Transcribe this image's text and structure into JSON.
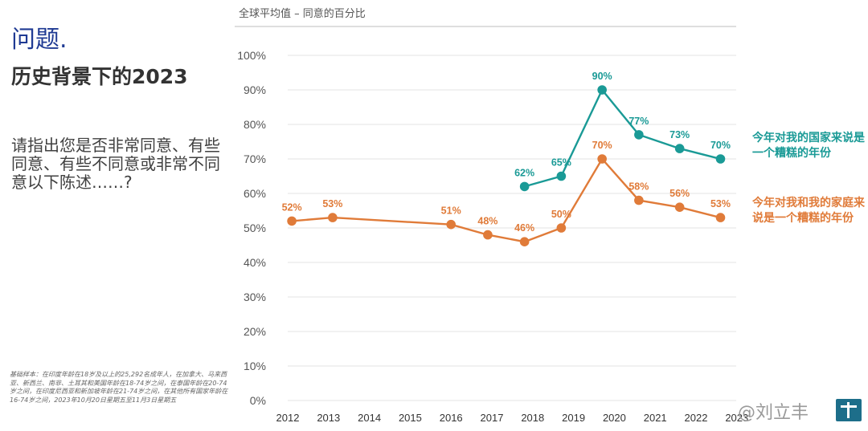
{
  "header": {
    "question": "问题.",
    "headline": "历史背景下的2023"
  },
  "prompt": "请指出您是否非常同意、有些同意、有些不同意或非常不同意以下陈述……?",
  "footnote": "基础样本：在印度年龄在18岁及以上的25,292名成年人，在加拿大、马来西亚、新西兰、南非、土耳其和美国年龄在18-74岁之间，在泰国年龄在20-74岁之间，在印度尼西亚和新加坡年龄在21-74岁之间，在其他所有国家年龄在16-74岁之间，2023年10月20日星期五至11月3日星期五",
  "legend": {
    "country": "今年对我的国家来说是一个糟糕的年份",
    "family": "今年对我和我的家庭来说是一个糟糕的年份"
  },
  "watermark": "@刘立丰",
  "chart_data": {
    "type": "line",
    "title": "全球平均值 – 同意的百分比",
    "x_ticks": [
      "2012",
      "2013",
      "2014",
      "2015",
      "2016",
      "2017",
      "2018",
      "2019",
      "2020",
      "2021",
      "2022",
      "2023"
    ],
    "y_ticks": [
      "0%",
      "10%",
      "20%",
      "30%",
      "40%",
      "50%",
      "60%",
      "70%",
      "80%",
      "90%",
      "100%"
    ],
    "ylim": [
      0,
      100
    ],
    "grid": true,
    "legend_position": "right",
    "series": [
      {
        "name": "今年对我的国家来说是一个糟糕的年份",
        "color": "#1a9a96",
        "x": [
          2017.8,
          2018.7,
          2019.7,
          2020.6,
          2021.6,
          2022.6
        ],
        "values": [
          62,
          65,
          90,
          77,
          73,
          70
        ],
        "labels": [
          "62%",
          "65%",
          "90%",
          "77%",
          "73%",
          "70%"
        ]
      },
      {
        "name": "今年对我和我的家庭来说是一个糟糕的年份",
        "color": "#e07b39",
        "x": [
          2012.1,
          2013.1,
          2016.0,
          2016.9,
          2017.8,
          2018.7,
          2019.7,
          2020.6,
          2021.6,
          2022.6
        ],
        "values": [
          52,
          53,
          51,
          48,
          46,
          50,
          70,
          58,
          56,
          53
        ],
        "labels": [
          "52%",
          "53%",
          "51%",
          "48%",
          "46%",
          "50%",
          "70%",
          "58%",
          "56%",
          "53%"
        ]
      }
    ]
  }
}
